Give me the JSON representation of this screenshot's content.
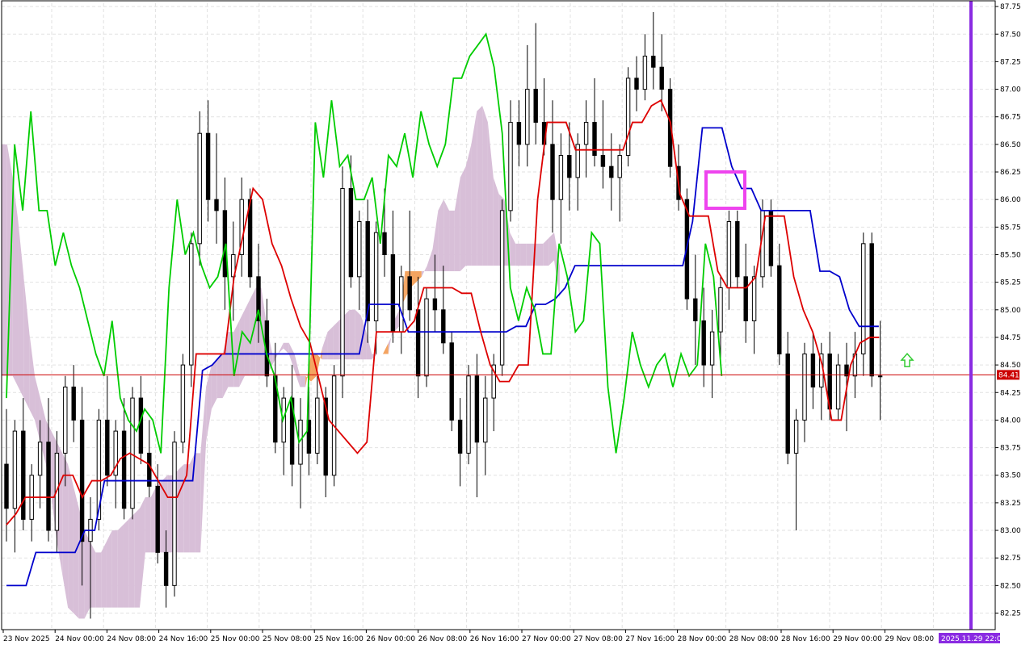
{
  "chart_data": {
    "type": "candlestick",
    "price_scale": {
      "min": 82.1,
      "max": 87.78,
      "ticks": [
        "87.75",
        "87.50",
        "87.25",
        "87.00",
        "86.75",
        "86.50",
        "86.25",
        "86.00",
        "85.75",
        "85.50",
        "85.25",
        "85.00",
        "84.75",
        "84.50",
        "84.25",
        "84.00",
        "83.75",
        "83.50",
        "83.25",
        "83.00",
        "82.75",
        "82.50",
        "82.25"
      ]
    },
    "time_labels": [
      "23 Nov 2025",
      "24 Nov 00:00",
      "24 Nov 08:00",
      "24 Nov 16:00",
      "25 Nov 00:00",
      "25 Nov 08:00",
      "25 Nov 16:00",
      "26 Nov 00:00",
      "26 Nov 08:00",
      "26 Nov 16:00",
      "27 Nov 00:00",
      "27 Nov 08:00",
      "27 Nov 16:00",
      "28 Nov 00:00",
      "28 Nov 08:00",
      "28 Nov 16:00",
      "29 Nov 00:00",
      "29 Nov 08:00"
    ],
    "current_price": {
      "value": "84.41",
      "color": "#cc0000"
    },
    "period_separator": {
      "label": "2025.11.29 22:00",
      "color": "#8a2be2"
    },
    "grid": true,
    "candles": [
      [
        83.6,
        84.1,
        82.9,
        83.2
      ],
      [
        83.2,
        84.0,
        82.8,
        83.9
      ],
      [
        83.9,
        84.2,
        83.0,
        83.1
      ],
      [
        83.1,
        83.6,
        82.9,
        83.5
      ],
      [
        83.5,
        84.0,
        83.2,
        83.8
      ],
      [
        83.8,
        84.2,
        82.9,
        83.0
      ],
      [
        83.0,
        83.9,
        82.8,
        83.7
      ],
      [
        83.7,
        84.4,
        83.4,
        84.3
      ],
      [
        84.3,
        84.5,
        83.8,
        84.0
      ],
      [
        84.0,
        84.3,
        82.5,
        82.9
      ],
      [
        82.9,
        83.3,
        82.2,
        83.1
      ],
      [
        83.1,
        84.1,
        83.0,
        84.0
      ],
      [
        84.0,
        84.4,
        83.4,
        83.5
      ],
      [
        83.5,
        84.0,
        83.2,
        83.9
      ],
      [
        83.9,
        84.2,
        83.1,
        83.2
      ],
      [
        83.2,
        84.3,
        83.1,
        84.2
      ],
      [
        84.2,
        84.4,
        83.6,
        83.7
      ],
      [
        83.7,
        84.0,
        83.3,
        83.4
      ],
      [
        83.4,
        83.6,
        82.7,
        82.8
      ],
      [
        82.8,
        83.0,
        82.3,
        82.5
      ],
      [
        82.5,
        83.9,
        82.4,
        83.8
      ],
      [
        83.8,
        84.6,
        83.7,
        84.5
      ],
      [
        84.5,
        85.7,
        84.3,
        85.6
      ],
      [
        85.6,
        86.8,
        85.4,
        86.6
      ],
      [
        86.6,
        86.9,
        85.8,
        86.0
      ],
      [
        86.0,
        86.6,
        85.6,
        85.9
      ],
      [
        85.9,
        86.2,
        85.0,
        85.3
      ],
      [
        85.3,
        85.8,
        84.9,
        85.5
      ],
      [
        85.5,
        86.2,
        85.3,
        86.0
      ],
      [
        86.0,
        86.1,
        85.2,
        85.3
      ],
      [
        85.3,
        85.6,
        84.7,
        84.9
      ],
      [
        84.9,
        85.1,
        84.3,
        84.4
      ],
      [
        84.4,
        84.7,
        83.7,
        83.8
      ],
      [
        83.8,
        84.3,
        83.5,
        84.2
      ],
      [
        84.2,
        84.5,
        83.4,
        83.6
      ],
      [
        83.6,
        84.2,
        83.2,
        84.0
      ],
      [
        84.0,
        84.3,
        83.5,
        83.7
      ],
      [
        83.7,
        84.4,
        83.6,
        84.2
      ],
      [
        84.2,
        84.3,
        83.3,
        83.5
      ],
      [
        83.5,
        84.5,
        83.4,
        84.4
      ],
      [
        84.4,
        86.3,
        84.2,
        86.1
      ],
      [
        86.1,
        86.4,
        85.2,
        85.3
      ],
      [
        85.3,
        85.9,
        85.0,
        85.8
      ],
      [
        85.8,
        86.0,
        84.7,
        84.9
      ],
      [
        84.9,
        85.8,
        84.6,
        85.7
      ],
      [
        85.7,
        86.1,
        85.3,
        85.5
      ],
      [
        85.5,
        85.9,
        84.7,
        84.8
      ],
      [
        84.8,
        85.4,
        84.6,
        85.3
      ],
      [
        85.3,
        85.9,
        84.9,
        85.0
      ],
      [
        85.0,
        85.3,
        84.2,
        84.4
      ],
      [
        84.4,
        85.2,
        84.3,
        85.1
      ],
      [
        85.1,
        85.5,
        84.8,
        85.0
      ],
      [
        85.0,
        85.4,
        84.6,
        84.7
      ],
      [
        84.7,
        84.8,
        83.9,
        84.0
      ],
      [
        84.0,
        84.2,
        83.4,
        83.7
      ],
      [
        83.7,
        84.5,
        83.6,
        84.4
      ],
      [
        84.4,
        84.6,
        83.3,
        83.8
      ],
      [
        83.8,
        84.4,
        83.5,
        84.2
      ],
      [
        84.2,
        84.6,
        83.9,
        84.5
      ],
      [
        84.5,
        86.0,
        84.4,
        85.9
      ],
      [
        85.9,
        86.9,
        85.8,
        86.7
      ],
      [
        86.7,
        86.9,
        86.3,
        86.5
      ],
      [
        86.5,
        87.4,
        86.3,
        87.0
      ],
      [
        87.0,
        87.6,
        86.5,
        86.7
      ],
      [
        86.7,
        87.1,
        86.4,
        86.5
      ],
      [
        86.5,
        86.9,
        85.7,
        86.0
      ],
      [
        86.0,
        86.6,
        85.6,
        86.4
      ],
      [
        86.4,
        86.7,
        85.9,
        86.2
      ],
      [
        86.2,
        86.6,
        85.9,
        86.5
      ],
      [
        86.5,
        86.9,
        86.2,
        86.7
      ],
      [
        86.7,
        87.1,
        86.3,
        86.4
      ],
      [
        86.4,
        86.9,
        86.1,
        86.3
      ],
      [
        86.3,
        86.6,
        85.9,
        86.2
      ],
      [
        86.2,
        86.5,
        85.8,
        86.4
      ],
      [
        86.4,
        87.2,
        86.3,
        87.1
      ],
      [
        87.1,
        87.3,
        86.8,
        87.0
      ],
      [
        87.0,
        87.5,
        86.9,
        87.3
      ],
      [
        87.3,
        87.7,
        87.0,
        87.2
      ],
      [
        87.2,
        87.5,
        86.8,
        87.0
      ],
      [
        87.0,
        87.1,
        86.2,
        86.3
      ],
      [
        86.3,
        86.5,
        85.9,
        86.0
      ],
      [
        86.0,
        86.1,
        85.0,
        85.1
      ],
      [
        85.1,
        85.5,
        84.5,
        84.9
      ],
      [
        84.9,
        85.2,
        84.3,
        84.5
      ],
      [
        84.5,
        85.0,
        84.2,
        84.8
      ],
      [
        84.8,
        85.3,
        84.5,
        85.2
      ],
      [
        85.2,
        85.9,
        85.0,
        85.8
      ],
      [
        85.8,
        85.9,
        85.2,
        85.3
      ],
      [
        85.3,
        85.6,
        84.7,
        84.9
      ],
      [
        84.9,
        85.4,
        84.6,
        85.3
      ],
      [
        85.3,
        86.0,
        85.2,
        85.9
      ],
      [
        85.9,
        86.0,
        85.3,
        85.4
      ],
      [
        85.4,
        85.6,
        84.5,
        84.6
      ],
      [
        84.6,
        84.8,
        83.6,
        83.7
      ],
      [
        83.7,
        84.1,
        83.0,
        84.0
      ],
      [
        84.0,
        84.7,
        83.8,
        84.6
      ],
      [
        84.6,
        84.8,
        84.1,
        84.3
      ],
      [
        84.3,
        84.7,
        84.0,
        84.6
      ],
      [
        84.6,
        84.8,
        84.0,
        84.1
      ],
      [
        84.1,
        84.6,
        84.0,
        84.5
      ],
      [
        84.5,
        84.7,
        83.9,
        84.4
      ],
      [
        84.4,
        84.8,
        84.2,
        84.6
      ],
      [
        84.6,
        85.7,
        84.4,
        85.6
      ],
      [
        85.6,
        85.7,
        84.3,
        84.4
      ],
      [
        84.4,
        84.9,
        84.0,
        84.4
      ]
    ],
    "tenkan_sen": {
      "color": "#dd0000",
      "values": [
        83.05,
        83.15,
        83.3,
        83.3,
        83.3,
        83.3,
        83.5,
        83.5,
        83.3,
        83.45,
        83.45,
        83.5,
        83.65,
        83.7,
        83.65,
        83.6,
        83.45,
        83.3,
        83.3,
        83.5,
        84.6,
        84.6,
        84.6,
        84.6,
        85.3,
        85.7,
        86.1,
        86.0,
        85.6,
        85.4,
        85.1,
        84.85,
        84.7,
        84.35,
        84.0,
        83.9,
        83.8,
        83.7,
        83.8,
        84.8,
        84.8,
        84.8,
        84.8,
        84.9,
        85.2,
        85.2,
        85.2,
        85.2,
        85.15,
        85.15,
        84.8,
        84.5,
        84.35,
        84.35,
        84.5,
        84.5,
        86.0,
        86.7,
        86.7,
        86.7,
        86.45,
        86.45,
        86.45,
        86.45,
        86.45,
        86.45,
        86.7,
        86.7,
        86.85,
        86.9,
        86.7,
        86.05,
        85.85,
        85.85,
        85.85,
        85.35,
        85.2,
        85.2,
        85.2,
        85.3,
        85.85,
        85.85,
        85.85,
        85.3,
        85.0,
        84.8,
        84.5,
        84.0,
        84.0,
        84.5,
        84.7,
        84.75,
        84.75
      ]
    },
    "kijun_sen": {
      "color": "#0000cc",
      "values": [
        82.5,
        82.5,
        82.5,
        82.8,
        82.8,
        82.8,
        82.8,
        82.8,
        83.0,
        83.0,
        83.45,
        83.45,
        83.45,
        83.45,
        83.45,
        83.45,
        83.45,
        83.45,
        83.45,
        83.45,
        84.45,
        84.5,
        84.6,
        84.6,
        84.6,
        84.6,
        84.6,
        84.6,
        84.6,
        84.6,
        84.6,
        84.6,
        84.6,
        84.6,
        84.6,
        84.6,
        84.6,
        85.05,
        85.05,
        85.05,
        85.05,
        84.8,
        84.8,
        84.8,
        84.8,
        84.8,
        84.8,
        84.8,
        84.8,
        84.8,
        84.8,
        84.8,
        84.85,
        84.85,
        85.05,
        85.05,
        85.1,
        85.2,
        85.4,
        85.4,
        85.4,
        85.4,
        85.4,
        85.4,
        85.4,
        85.4,
        85.4,
        85.4,
        85.4,
        85.4,
        85.8,
        86.65,
        86.65,
        86.65,
        86.3,
        86.1,
        86.1,
        85.9,
        85.9,
        85.9,
        85.9,
        85.9,
        85.9,
        85.35,
        85.35,
        85.3,
        85.0,
        84.85,
        84.85,
        84.85
      ]
    },
    "chikou_span": {
      "color": "#00cc00",
      "values": [
        84.2,
        86.5,
        85.9,
        86.8,
        85.9,
        85.9,
        85.4,
        85.7,
        85.4,
        85.2,
        84.9,
        84.6,
        84.4,
        84.9,
        84.2,
        84.0,
        83.9,
        84.1,
        84.0,
        83.7,
        85.2,
        86.0,
        85.5,
        85.7,
        85.4,
        85.2,
        85.3,
        85.6,
        84.4,
        84.8,
        84.7,
        85.0,
        84.6,
        84.4,
        84.0,
        84.2,
        83.8,
        83.9,
        86.7,
        86.2,
        86.9,
        86.3,
        86.4,
        86.0,
        86.0,
        86.2,
        85.6,
        86.4,
        86.3,
        86.6,
        86.2,
        86.8,
        86.5,
        86.3,
        86.5,
        87.1,
        87.1,
        87.3,
        87.4,
        87.5,
        87.2,
        86.6,
        85.2,
        84.9,
        85.2,
        85.0,
        84.6,
        84.6,
        85.6,
        85.3,
        84.8,
        84.9,
        85.7,
        85.6,
        84.3,
        83.7,
        84.2,
        84.8,
        84.5,
        84.3,
        84.5,
        84.6,
        84.3,
        84.6,
        84.4,
        84.5,
        85.6,
        85.3,
        84.4
      ]
    },
    "kumo": {
      "bull_color": "#f4a460",
      "bear_color": "#d8bfd8",
      "span_a": [
        86.5,
        86.5,
        86.2,
        85.8,
        85.3,
        84.8,
        84.4,
        84.2,
        84.0,
        83.9,
        83.8,
        83.7,
        83.6,
        83.4,
        83.2,
        83.0,
        82.9,
        82.8,
        82.8,
        82.9,
        83.0,
        83.0,
        83.05,
        83.1,
        83.15,
        83.2,
        83.3,
        83.3,
        83.4,
        83.45,
        83.5,
        83.5,
        83.55,
        83.6,
        83.6,
        83.7,
        83.7,
        84.3,
        84.5,
        84.55,
        84.6,
        84.8,
        84.8,
        84.9,
        85.0,
        85.1,
        85.2,
        85.2,
        84.85,
        84.6,
        84.6,
        84.7,
        84.7,
        84.6,
        84.4,
        84.4,
        84.35,
        84.4,
        84.65,
        84.8,
        84.85,
        84.9,
        84.95,
        85.0,
        85.0,
        84.95,
        84.8,
        84.6,
        84.6,
        84.6,
        84.6,
        84.9,
        85.0,
        85.1,
        85.2,
        85.25,
        85.3,
        85.4,
        85.55,
        85.9,
        86.0,
        85.9,
        85.9,
        86.2,
        86.3,
        86.5,
        86.8,
        86.85,
        86.7,
        86.2,
        86.05,
        86.0,
        85.7,
        85.6,
        85.6,
        85.6,
        85.6,
        85.6,
        85.6,
        85.65,
        85.7,
        85.4
      ],
      "span_b": [
        84.4,
        84.4,
        84.4,
        84.3,
        84.2,
        84.1,
        84.0,
        83.8,
        83.6,
        83.3,
        82.9,
        82.6,
        82.3,
        82.25,
        82.2,
        82.2,
        82.3,
        82.3,
        82.3,
        82.3,
        82.3,
        82.3,
        82.3,
        82.3,
        82.3,
        82.3,
        82.8,
        82.8,
        82.8,
        82.8,
        82.8,
        82.8,
        82.8,
        82.8,
        82.8,
        82.8,
        82.8,
        83.8,
        84.1,
        84.2,
        84.2,
        84.3,
        84.3,
        84.3,
        84.4,
        84.4,
        84.4,
        84.4,
        84.4,
        84.5,
        84.6,
        84.65,
        84.6,
        84.45,
        84.3,
        84.3,
        84.6,
        84.6,
        84.55,
        84.55,
        84.55,
        84.55,
        84.55,
        84.55,
        84.55,
        84.55,
        84.55,
        84.55,
        84.6,
        84.6,
        84.7,
        84.8,
        84.85,
        85.35,
        85.35,
        85.35,
        85.35,
        85.35,
        85.35,
        85.35,
        85.35,
        85.35,
        85.35,
        85.35,
        85.4,
        85.4,
        85.4,
        85.4,
        85.4,
        85.4,
        85.4,
        85.4,
        85.4,
        85.4,
        85.4,
        85.4,
        85.4,
        85.4,
        85.4,
        85.4,
        85.45,
        85.1
      ]
    },
    "highlight_box": {
      "price_top": 86.25,
      "price_bottom": 85.95,
      "color": "#ee44ee"
    },
    "signal_arrow": {
      "direction": "up",
      "price": 84.5,
      "color": "#33cc33"
    }
  }
}
